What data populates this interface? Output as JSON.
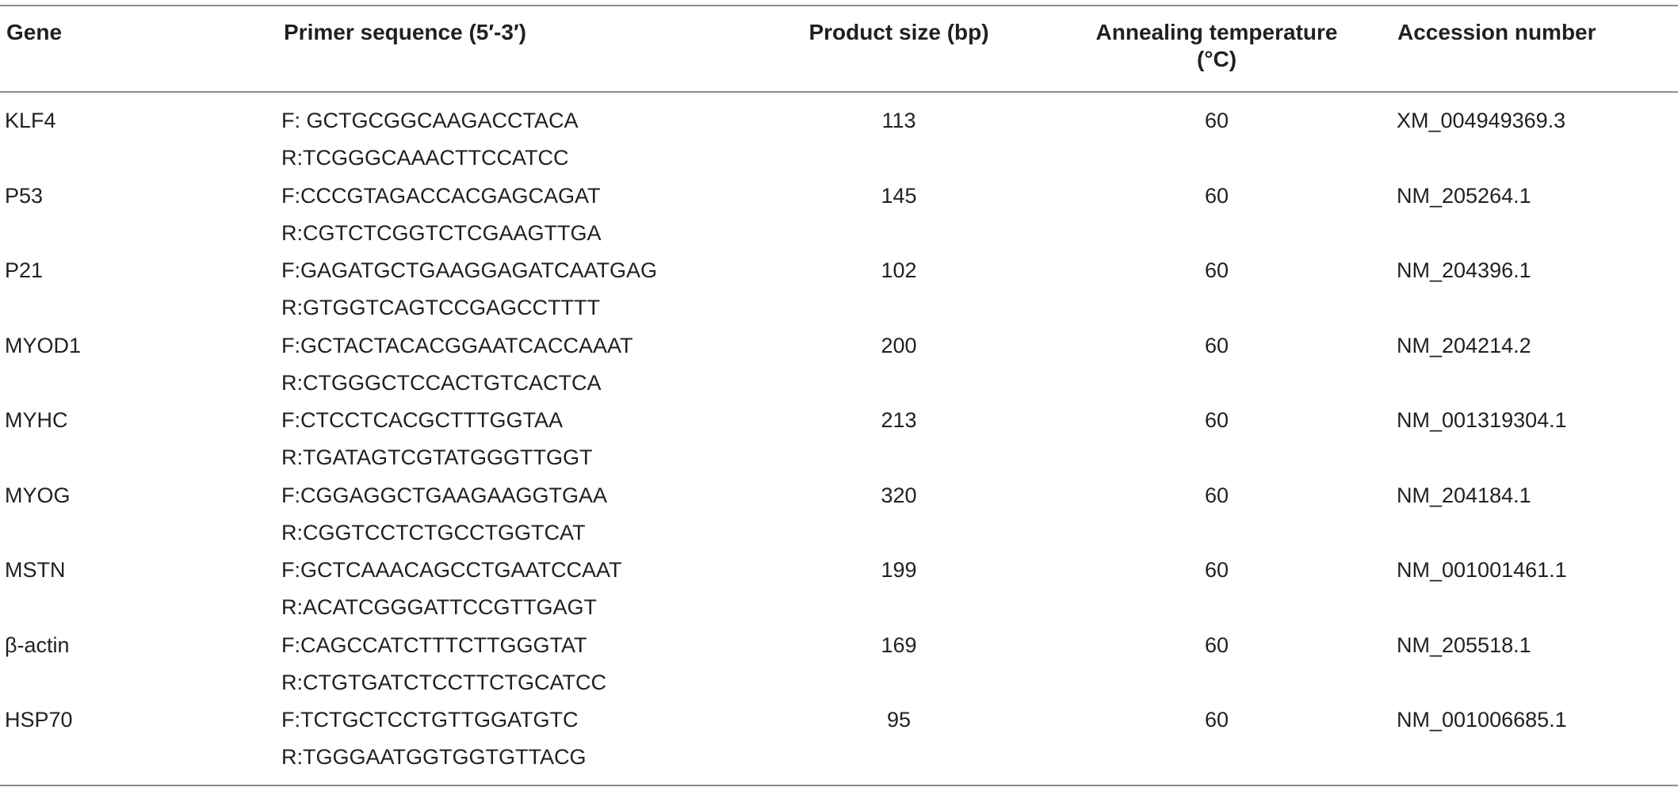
{
  "table": {
    "headers": {
      "gene": "Gene",
      "primer": "Primer sequence (5′-3′)",
      "product_size": "Product size (bp)",
      "annealing_line1": "Annealing temperature",
      "annealing_line2": "(°C)",
      "accession": "Accession number"
    },
    "rows": [
      {
        "gene": "KLF4",
        "forward": "F: GCTGCGGCAAGACCTACA",
        "reverse": "R:TCGGGCAAACTTCCATCC",
        "product_size": "113",
        "annealing": "60",
        "accession": "XM_004949369.3"
      },
      {
        "gene": "P53",
        "forward": "F:CCCGTAGACCACGAGCAGAT",
        "reverse": "R:CGTCTCGGTCTCGAAGTTGA",
        "product_size": "145",
        "annealing": "60",
        "accession": "NM_205264.1"
      },
      {
        "gene": "P21",
        "forward": "F:GAGATGCTGAAGGAGATCAATGAG",
        "reverse": "R:GTGGTCAGTCCGAGCCTTTT",
        "product_size": "102",
        "annealing": "60",
        "accession": "NM_204396.1"
      },
      {
        "gene": "MYOD1",
        "forward": "F:GCTACTACACGGAATCACCAAAT",
        "reverse": "R:CTGGGCTCCACTGTCACTCA",
        "product_size": "200",
        "annealing": "60",
        "accession": "NM_204214.2"
      },
      {
        "gene": "MYHC",
        "forward": "F:CTCCTCACGCTTTGGTAA",
        "reverse": "R:TGATAGTCGTATGGGTTGGT",
        "product_size": "213",
        "annealing": "60",
        "accession": "NM_001319304.1"
      },
      {
        "gene": "MYOG",
        "forward": "F:CGGAGGCTGAAGAAGGTGAA",
        "reverse": "R:CGGTCCTCTGCCTGGTCAT",
        "product_size": "320",
        "annealing": "60",
        "accession": "NM_204184.1"
      },
      {
        "gene": "MSTN",
        "forward": "F:GCTCAAACAGCCTGAATCCAAT",
        "reverse": "R:ACATCGGGATTCCGTTGAGT",
        "product_size": "199",
        "annealing": "60",
        "accession": "NM_001001461.1"
      },
      {
        "gene": "β-actin",
        "forward": "F:CAGCCATCTTTCTTGGGTAT",
        "reverse": "R:CTGTGATCTCCTTCTGCATCC",
        "product_size": "169",
        "annealing": "60",
        "accession": "NM_205518.1"
      },
      {
        "gene": "HSP70",
        "forward": "F:TCTGCTCCTGTTGGATGTC",
        "reverse": "R:TGGGAATGGTGGTGTTACG",
        "product_size": "95",
        "annealing": "60",
        "accession": "NM_001006685.1"
      }
    ]
  }
}
